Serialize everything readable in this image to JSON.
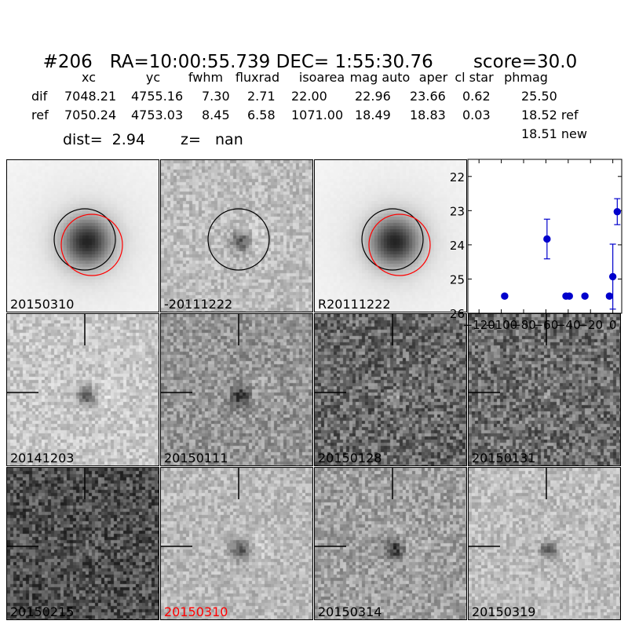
{
  "header": {
    "id": "#206",
    "ra": "RA=10:00:55.739",
    "dec": "DEC= 1:55:30.76",
    "score": "score=30.0"
  },
  "table": {
    "columns": [
      "xc",
      "yc",
      "fwhm",
      "fluxrad",
      "isoarea",
      "mag auto",
      "aper",
      "cl star",
      "phmag"
    ],
    "rows": [
      {
        "label": "dif",
        "values": [
          "7048.21",
          "4755.16",
          "7.30",
          "2.71",
          "22.00",
          "22.96",
          "23.66",
          "0.62",
          "25.50"
        ]
      },
      {
        "label": "ref",
        "values": [
          "7050.24",
          "4753.03",
          "8.45",
          "6.58",
          "1071.00",
          "18.49",
          "18.83",
          "0.03",
          "18.52 ref"
        ]
      }
    ],
    "extra_phmag": "18.51 new",
    "dist": "dist=  2.94",
    "z": "z=   nan"
  },
  "stamps": [
    {
      "label": "20150310",
      "kind": "galaxy",
      "circles": true,
      "red_label": false
    },
    {
      "label": "-20111222",
      "kind": "diff",
      "circles": true,
      "red_label": false
    },
    {
      "label": "R20111222",
      "kind": "galaxy",
      "circles": true,
      "red_label": false
    },
    {
      "label": "20141203",
      "kind": "noise-light",
      "circles": false,
      "red_label": false
    },
    {
      "label": "20150111",
      "kind": "noise-mid",
      "circles": false,
      "red_label": false
    },
    {
      "label": "20150128",
      "kind": "noise-dark",
      "circles": false,
      "red_label": false
    },
    {
      "label": "20150131",
      "kind": "noise-dark2",
      "circles": false,
      "red_label": false
    },
    {
      "label": "20150215",
      "kind": "noise-darkest",
      "circles": false,
      "red_label": false
    },
    {
      "label": "20150310",
      "kind": "noise-light2",
      "circles": false,
      "red_label": true
    },
    {
      "label": "20150314",
      "kind": "noise-mid2",
      "circles": false,
      "red_label": false
    },
    {
      "label": "20150319",
      "kind": "noise-light3",
      "circles": false,
      "red_label": false
    }
  ],
  "chart_data": {
    "type": "scatter",
    "xlim": [
      -130,
      8
    ],
    "ylim": [
      26,
      21.5
    ],
    "xticks": [
      -120,
      -100,
      -80,
      -60,
      -40,
      -20,
      0
    ],
    "xtick_labels": [
      "−120",
      "−100",
      "−80",
      "−60",
      "−40",
      "−20",
      "0"
    ],
    "yticks": [
      22,
      23,
      24,
      25,
      26
    ],
    "ytick_labels": [
      "22",
      "23",
      "24",
      "25",
      "26"
    ],
    "points": [
      {
        "x": -97,
        "y": 25.5,
        "err": 0.05,
        "limit": true
      },
      {
        "x": -59,
        "y": 23.83,
        "err": 0.58,
        "limit": false
      },
      {
        "x": -42,
        "y": 25.5,
        "err": 0.05,
        "limit": true
      },
      {
        "x": -39,
        "y": 25.5,
        "err": 0.05,
        "limit": true
      },
      {
        "x": -25,
        "y": 25.5,
        "err": 0.05,
        "limit": true
      },
      {
        "x": -3,
        "y": 25.5,
        "err": 0.05,
        "limit": true
      },
      {
        "x": 0,
        "y": 24.93,
        "err": 0.95,
        "limit": false
      },
      {
        "x": 4,
        "y": 23.03,
        "err": 0.38,
        "limit": false
      }
    ],
    "color": "#0000cc"
  }
}
